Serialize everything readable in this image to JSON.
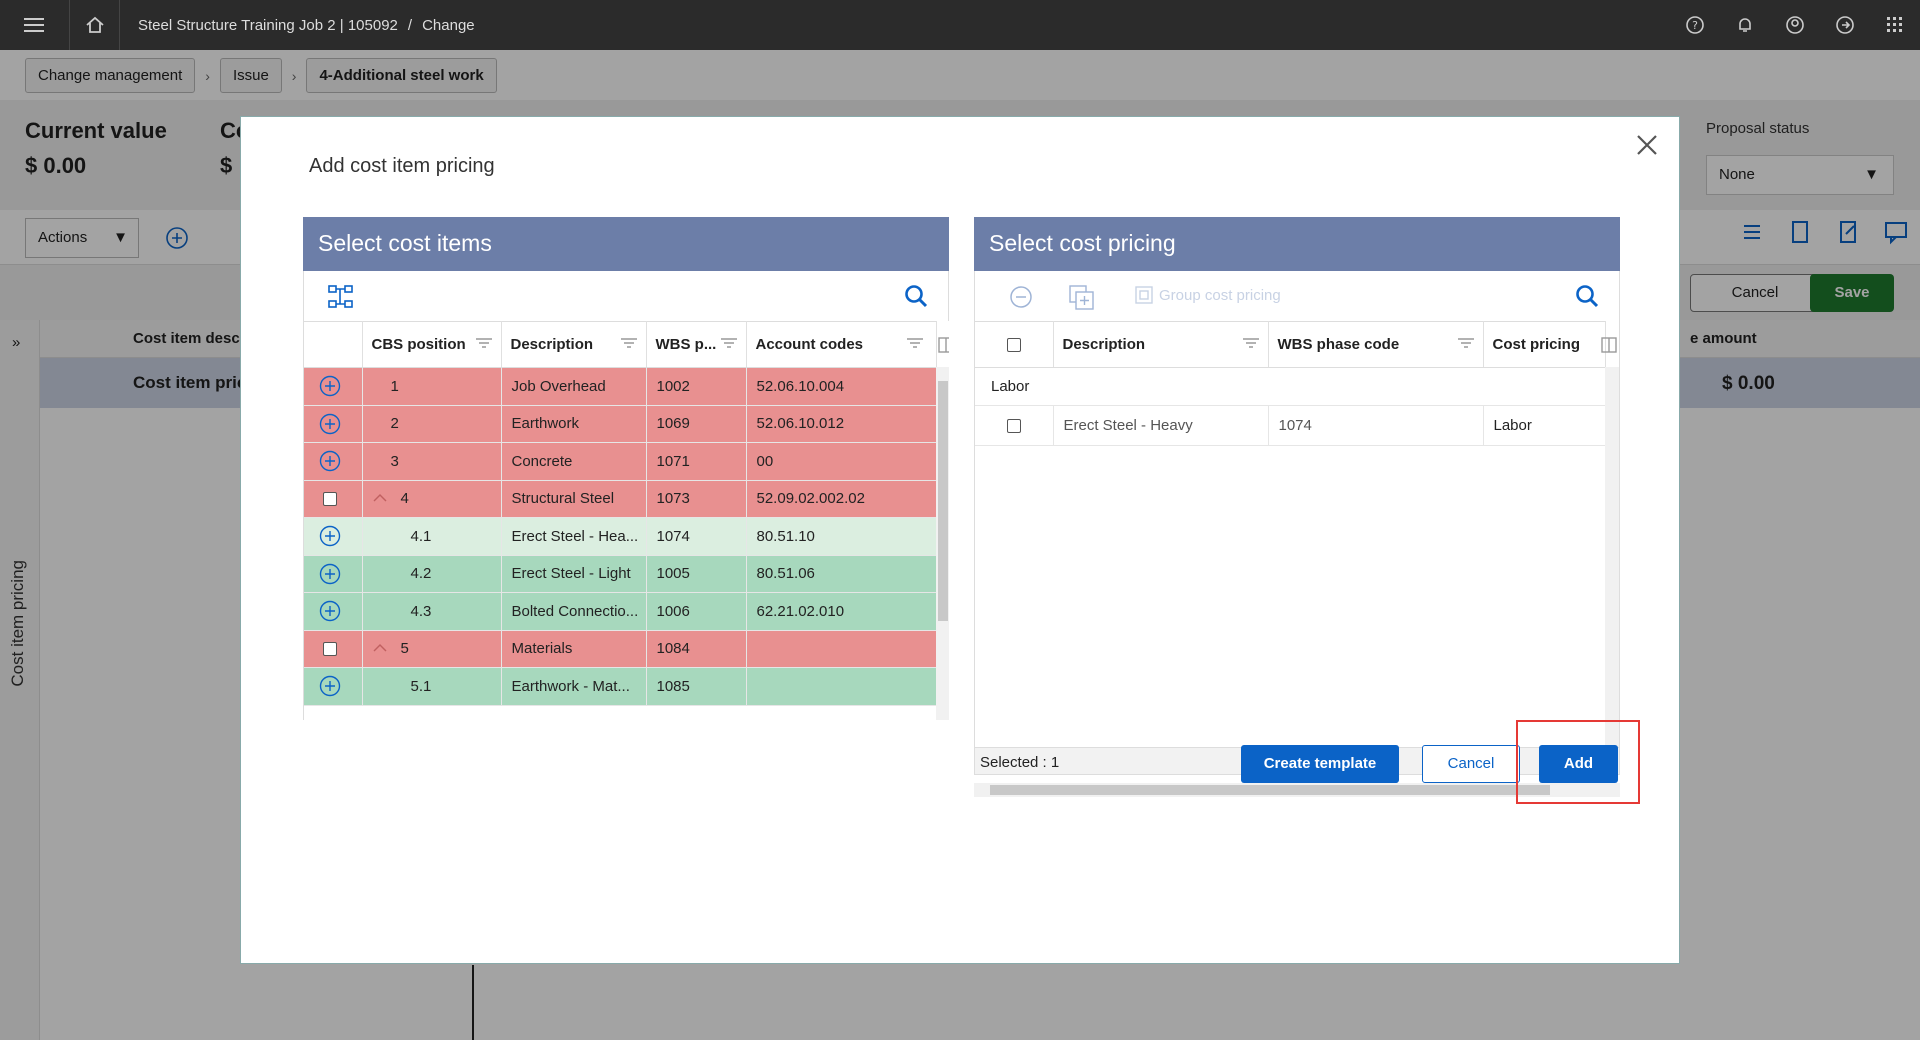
{
  "topbar": {
    "breadcrumb": "Steel Structure Training Job 2 | 105092",
    "separator": "/",
    "section": "Change"
  },
  "breadcrumb": {
    "items": [
      "Change management",
      "Issue",
      "4-Additional steel work"
    ]
  },
  "background": {
    "current_value_label": "Current value",
    "current_value": "$ 0.00",
    "col2_label": "Co",
    "col2_value": "$",
    "proposal_status_label": "Proposal status",
    "proposal_status_value": "None",
    "actions_label": "Actions",
    "cancel_label": "Cancel",
    "save_label": "Save",
    "side_label": "Cost item pricing",
    "grid_header_1": "Cost item descr",
    "grid_header_2": "e amount",
    "grid_row_desc": "Cost item prici",
    "grid_row_amount": "$ 0.00"
  },
  "modal": {
    "title": "Add cost item pricing",
    "left_panel": {
      "title": "Select cost items",
      "columns": [
        "CBS position",
        "Description",
        "WBS p...",
        "Account codes"
      ],
      "rows": [
        {
          "kind": "red",
          "control": "plus",
          "pos": "1",
          "desc": "Job Overhead",
          "wbs": "1002",
          "acct": "52.06.10.004"
        },
        {
          "kind": "red",
          "control": "plus",
          "pos": "2",
          "desc": "Earthwork",
          "wbs": "1069",
          "acct": "52.06.10.012"
        },
        {
          "kind": "red",
          "control": "plus",
          "pos": "3",
          "desc": "Concrete",
          "wbs": "1071",
          "acct": "00"
        },
        {
          "kind": "red",
          "control": "check",
          "expand": true,
          "pos": "4",
          "desc": "Structural Steel",
          "wbs": "1073",
          "acct": "52.09.02.002.02"
        },
        {
          "kind": "lightgreen",
          "control": "plus",
          "pos": "4.1",
          "desc": "Erect Steel  - Hea...",
          "wbs": "1074",
          "acct": "80.51.10",
          "indent": true
        },
        {
          "kind": "green",
          "control": "plus",
          "pos": "4.2",
          "desc": "Erect Steel - Light",
          "wbs": "1005",
          "acct": "80.51.06",
          "indent": true
        },
        {
          "kind": "green",
          "control": "plus",
          "pos": "4.3",
          "desc": "Bolted Connectio...",
          "wbs": "1006",
          "acct": "62.21.02.010",
          "indent": true
        },
        {
          "kind": "red",
          "control": "check",
          "expand": true,
          "pos": "5",
          "desc": "Materials",
          "wbs": "1084",
          "acct": ""
        },
        {
          "kind": "green",
          "control": "plus",
          "pos": "5.1",
          "desc": "Earthwork - Mat...",
          "wbs": "1085",
          "acct": "",
          "indent": true
        }
      ]
    },
    "right_panel": {
      "title": "Select cost pricing",
      "group_label": "Group cost pricing",
      "columns": [
        "Description",
        "WBS phase code",
        "Cost pricing"
      ],
      "group_row": "Labor",
      "rows": [
        {
          "desc": "Erect Steel  - Heavy",
          "wbs": "1074",
          "pricing": "Labor"
        }
      ],
      "selected_text": "Selected : 1"
    },
    "buttons": {
      "create_template": "Create template",
      "cancel": "Cancel",
      "add": "Add"
    }
  }
}
